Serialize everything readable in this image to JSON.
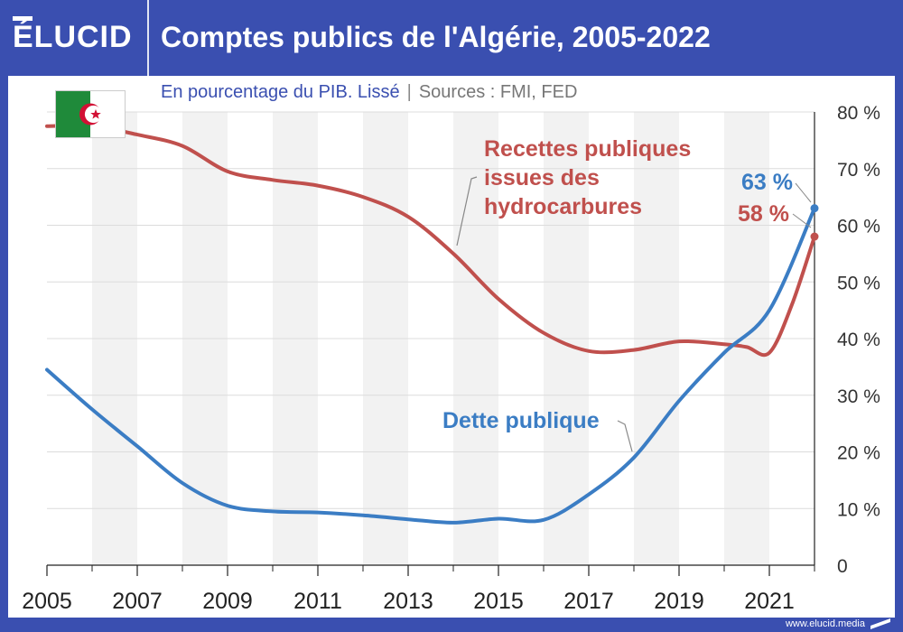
{
  "header": {
    "brand": "ÉLUCID",
    "title": "Comptes publics de l'Algérie, 2005-2022"
  },
  "subtitle": {
    "main": "En pourcentage du PIB. Lissé",
    "separator": "|",
    "sources": "Sources : FMI, FED"
  },
  "flag": {
    "icon": "algeria-flag-icon",
    "colors": {
      "green": "#1f8a3a",
      "white": "#ffffff",
      "red": "#d21034"
    }
  },
  "footer": {
    "url": "www.elucid.media"
  },
  "colors": {
    "brand_blue": "#3a4fb0",
    "revenue": "#c0504d",
    "debt": "#3b7dc4",
    "band": "#f2f2f2"
  },
  "chart_data": {
    "type": "line",
    "x_tick_labels": [
      "2005",
      "2007",
      "2009",
      "2011",
      "2013",
      "2015",
      "2017",
      "2019",
      "2021"
    ],
    "y_tick_labels": [
      "0",
      "10 %",
      "20 %",
      "30 %",
      "40 %",
      "50 %",
      "60 %",
      "70 %",
      "80 %"
    ],
    "xlim": [
      2005,
      2022
    ],
    "ylim": [
      0,
      80
    ],
    "y_axis_position": "right",
    "alternating_year_bands": true,
    "series": [
      {
        "name": "Recettes publiques issues des hydrocarbures",
        "label_lines": [
          "Recettes publiques",
          "issues des",
          "hydrocarbures"
        ],
        "color": "#c0504d",
        "x": [
          2005,
          2006,
          2007,
          2008,
          2009,
          2010,
          2011,
          2012,
          2013,
          2014,
          2015,
          2016,
          2017,
          2018,
          2019,
          2020,
          2020.5,
          2021,
          2021.5,
          2022
        ],
        "y": [
          77.5,
          77.5,
          76,
          74,
          69.5,
          68,
          67,
          65,
          61.5,
          55,
          47,
          41,
          37.8,
          38,
          39.5,
          39,
          38.5,
          37.5,
          46,
          58
        ],
        "end_label": "58 %"
      },
      {
        "name": "Dette publique",
        "label_lines": [
          "Dette publique"
        ],
        "color": "#3b7dc4",
        "x": [
          2005,
          2006,
          2007,
          2008,
          2009,
          2010,
          2011,
          2012,
          2013,
          2014,
          2015,
          2016,
          2017,
          2018,
          2019,
          2020,
          2021,
          2022
        ],
        "y": [
          34.5,
          27.5,
          21,
          14.5,
          10.5,
          9.5,
          9.3,
          8.8,
          8.1,
          7.5,
          8.2,
          8,
          12.5,
          19,
          29,
          37.5,
          45,
          63
        ],
        "end_label": "63 %"
      }
    ]
  }
}
